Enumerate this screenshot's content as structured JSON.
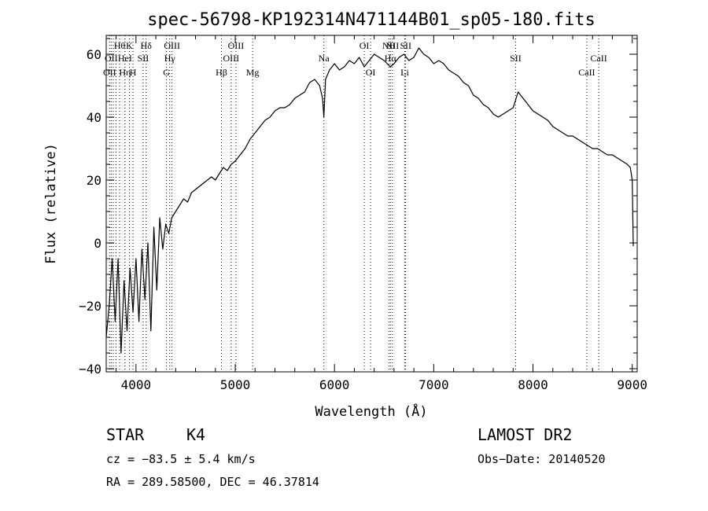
{
  "chart_data": {
    "type": "line",
    "title": "spec-56798-KP192314N471144B01_sp05-180.fits",
    "xlabel": "Wavelength (Å)",
    "ylabel": "Flux (relative)",
    "xlim": [
      3700,
      9050
    ],
    "ylim": [
      -41,
      66
    ],
    "x_ticks": [
      4000,
      5000,
      6000,
      7000,
      8000,
      9000
    ],
    "y_ticks": [
      -40,
      -20,
      0,
      20,
      40,
      60
    ],
    "grid": false,
    "series": [
      {
        "x": [
          3700,
          3730,
          3760,
          3790,
          3820,
          3850,
          3880,
          3910,
          3940,
          3970,
          4000,
          4030,
          4060,
          4090,
          4120,
          4150,
          4180,
          4210,
          4240,
          4270,
          4300,
          4330,
          4360,
          4400,
          4440,
          4480,
          4520,
          4560,
          4600,
          4640,
          4680,
          4720,
          4760,
          4800,
          4840,
          4880,
          4920,
          4960,
          5000,
          5050,
          5100,
          5150,
          5200,
          5250,
          5300,
          5350,
          5400,
          5450,
          5500,
          5550,
          5600,
          5650,
          5700,
          5750,
          5800,
          5850,
          5880,
          5893,
          5910,
          5950,
          6000,
          6050,
          6100,
          6150,
          6200,
          6250,
          6300,
          6350,
          6400,
          6450,
          6500,
          6563,
          6600,
          6650,
          6700,
          6750,
          6800,
          6850,
          6900,
          6950,
          7000,
          7050,
          7100,
          7150,
          7200,
          7250,
          7300,
          7350,
          7400,
          7450,
          7500,
          7550,
          7600,
          7650,
          7700,
          7750,
          7800,
          7850,
          7900,
          7950,
          8000,
          8050,
          8100,
          8150,
          8200,
          8250,
          8300,
          8350,
          8400,
          8450,
          8500,
          8550,
          8600,
          8650,
          8700,
          8750,
          8800,
          8850,
          8900,
          8950,
          8980,
          9000,
          9010
        ],
        "y": [
          -30,
          -20,
          -5,
          -25,
          -5,
          -35,
          -12,
          -28,
          -8,
          -22,
          -5,
          -25,
          -2,
          -18,
          0,
          -28,
          5,
          -15,
          8,
          -2,
          6,
          3,
          8,
          10,
          12,
          14,
          13,
          16,
          17,
          18,
          19,
          20,
          21,
          20,
          22,
          24,
          23,
          25,
          26,
          28,
          30,
          33,
          35,
          37,
          39,
          40,
          42,
          43,
          43,
          44,
          46,
          47,
          48,
          51,
          52,
          50,
          46,
          40,
          52,
          55,
          57,
          55,
          56,
          58,
          57,
          59,
          56,
          58,
          60,
          59,
          58,
          56,
          57,
          59,
          60,
          58,
          59,
          62,
          60,
          59,
          57,
          58,
          57,
          55,
          54,
          53,
          51,
          50,
          47,
          46,
          44,
          43,
          41,
          40,
          41,
          42,
          43,
          48,
          46,
          44,
          42,
          41,
          40,
          39,
          37,
          36,
          35,
          34,
          34,
          33,
          32,
          31,
          30,
          30,
          29,
          28,
          28,
          27,
          26,
          25,
          24,
          20,
          -1
        ]
      }
    ],
    "lines": [
      {
        "x": 3734,
        "label": "OII",
        "row": 2
      },
      {
        "x": 3750,
        "label": "OII",
        "row": 1
      },
      {
        "x": 3771,
        "label": "",
        "row": 0
      },
      {
        "x": 3798,
        "label": "",
        "row": 0
      },
      {
        "x": 3835,
        "label": "Hθ",
        "row": 0
      },
      {
        "x": 3889,
        "label": "Hη",
        "row": 2
      },
      {
        "x": 3934,
        "label": "K",
        "row": 0
      },
      {
        "x": 3970,
        "label": "H",
        "row": 2
      },
      {
        "x": 3889,
        "label": "HeI",
        "row": 1
      },
      {
        "x": 4072,
        "label": "SII",
        "row": 1
      },
      {
        "x": 4102,
        "label": "Hδ",
        "row": 0
      },
      {
        "x": 4307,
        "label": "G",
        "row": 2
      },
      {
        "x": 4340,
        "label": "Hγ",
        "row": 1
      },
      {
        "x": 4363,
        "label": "OIII",
        "row": 0
      },
      {
        "x": 4861,
        "label": "Hβ",
        "row": 2
      },
      {
        "x": 4959,
        "label": "OIII",
        "row": 1
      },
      {
        "x": 5007,
        "label": "OIII",
        "row": 0
      },
      {
        "x": 5175,
        "label": "Mg",
        "row": 2
      },
      {
        "x": 5893,
        "label": "Na",
        "row": 1
      },
      {
        "x": 6300,
        "label": "OI",
        "row": 0
      },
      {
        "x": 6364,
        "label": "OI",
        "row": 2
      },
      {
        "x": 6548,
        "label": "NII",
        "row": 0
      },
      {
        "x": 6563,
        "label": "Hα",
        "row": 1
      },
      {
        "x": 6584,
        "label": "NII",
        "row": 0
      },
      {
        "x": 6708,
        "label": "Li",
        "row": 2
      },
      {
        "x": 6717,
        "label": "SII",
        "row": 0
      },
      {
        "x": 7825,
        "label": "SII",
        "row": 1
      },
      {
        "x": 8542,
        "label": "CaII",
        "row": 2
      },
      {
        "x": 8662,
        "label": "CaII",
        "row": 1
      }
    ]
  },
  "info": {
    "object_class": "STAR",
    "subclass": "K4",
    "survey": "LAMOST DR2",
    "cz": "cz = −83.5 ± 5.4 km/s",
    "obs_date": "Obs−Date: 20140520",
    "coords": "RA = 289.58500, DEC =  46.37814"
  }
}
